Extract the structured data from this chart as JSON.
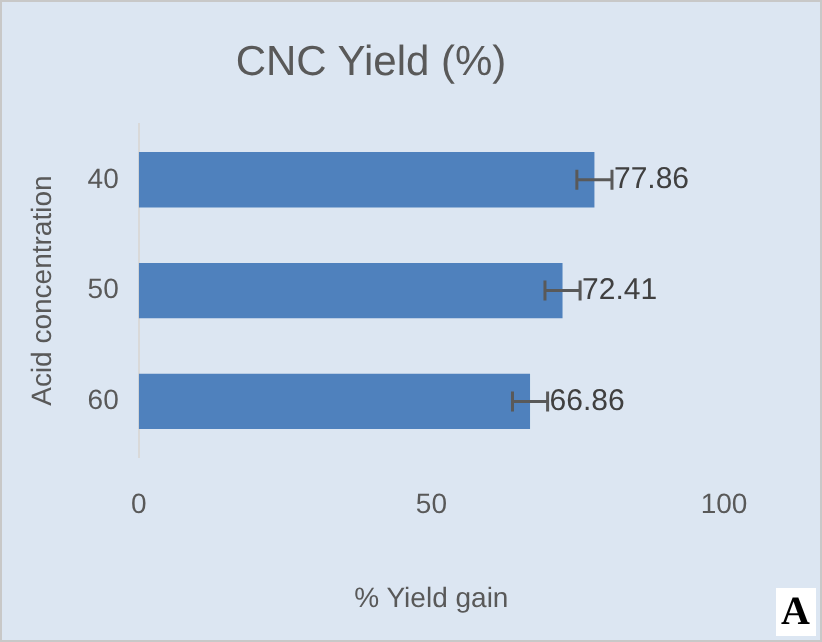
{
  "chart_data": {
    "type": "bar",
    "orientation": "horizontal",
    "title": "CNC Yield (%)",
    "xlabel": "% Yield gain",
    "ylabel": "Acid concentration",
    "categories": [
      "40",
      "50",
      "60"
    ],
    "values": [
      77.86,
      72.41,
      66.86
    ],
    "errors": [
      3,
      3,
      3
    ],
    "color": "#4f81bd",
    "data_labels": true,
    "xlim": [
      0,
      100
    ],
    "xticks": [
      0,
      50,
      100
    ],
    "grid": false,
    "legend": false,
    "annotations": [
      "A"
    ]
  }
}
